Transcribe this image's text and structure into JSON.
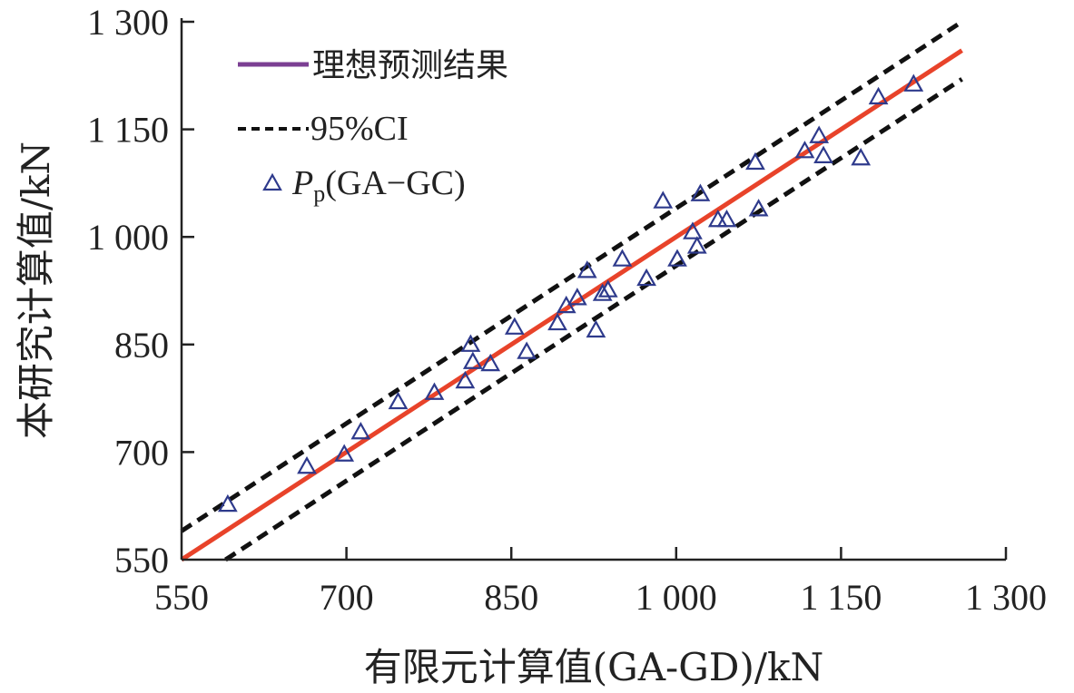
{
  "chart_data": {
    "type": "scatter",
    "xlabel": "有限元计算值(GA-GD)/kN",
    "ylabel": "本研究计算值/kN",
    "xlim": [
      550,
      1300
    ],
    "ylim": [
      550,
      1300
    ],
    "x_ticks": [
      550,
      700,
      850,
      1000,
      1150,
      1300
    ],
    "y_ticks": [
      550,
      700,
      850,
      1000,
      1150,
      1300
    ],
    "x_tick_labels": [
      "550",
      "700",
      "850",
      "1 000",
      "1 150",
      "1 300"
    ],
    "y_tick_labels": [
      "550",
      "700",
      "850",
      "1 000",
      "1 150",
      "1 300"
    ],
    "grid": false,
    "legend_position": "top-left",
    "legend": {
      "ideal": "理想预测结果",
      "ci": "95%CI",
      "points_main": "P",
      "points_sub": "p",
      "points_rest": "(GA−GC)"
    },
    "ideal_line": {
      "x": [
        550,
        1260
      ],
      "y": [
        550,
        1260
      ],
      "color": "#e8432a"
    },
    "ci_lines": {
      "offset": 40,
      "x": [
        550,
        1260
      ],
      "color": "#111111"
    },
    "legend_line_color": "#7b3f93",
    "marker_color": "#2e3a8c",
    "series": [
      {
        "name": "Pp(GA−GC)",
        "x": [
          592,
          664,
          698,
          713,
          747,
          780,
          808,
          813,
          815,
          831,
          853,
          864,
          892,
          900,
          910,
          919,
          927,
          933,
          938,
          951,
          973,
          988,
          1001,
          1015,
          1019,
          1022,
          1038,
          1046,
          1075,
          1072,
          1117,
          1130,
          1134,
          1168,
          1184,
          1216
        ],
        "y": [
          627,
          680,
          697,
          728,
          770,
          783,
          799,
          850,
          826,
          823,
          874,
          840,
          880,
          904,
          915,
          953,
          870,
          921,
          926,
          969,
          942,
          1050,
          969,
          1007,
          987,
          1060,
          1024,
          1024,
          1039,
          1104,
          1120,
          1141,
          1113,
          1110,
          1195,
          1213
        ]
      }
    ]
  }
}
